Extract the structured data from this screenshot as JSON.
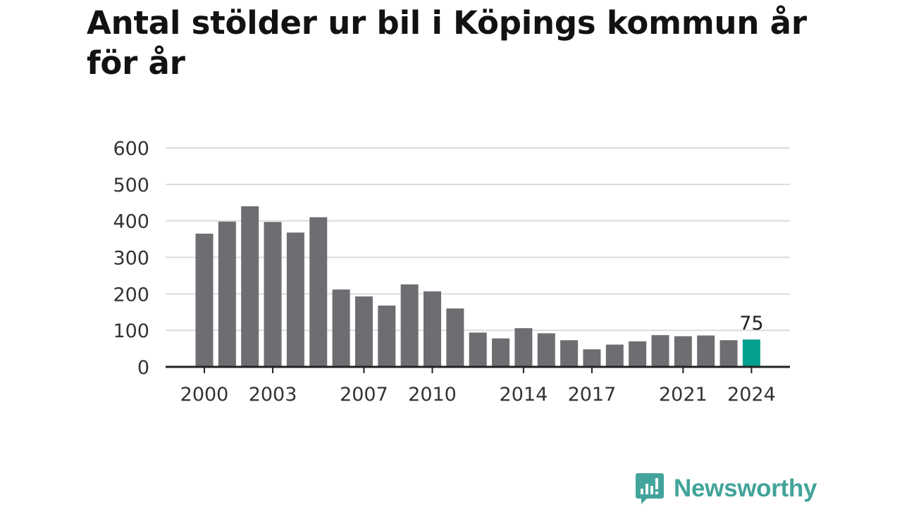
{
  "title": "Antal stölder ur bil i Köpings kommun år för år",
  "logo_text": "Newsworthy",
  "colors": {
    "bar": "#6e6d72",
    "highlight": "#05a08f",
    "grid": "#dcdcdc",
    "axis": "#222222",
    "logo": "#42a49a"
  },
  "chart_data": {
    "type": "bar",
    "title": "Antal stölder ur bil i Köpings kommun år för år",
    "xlabel": "",
    "ylabel": "",
    "categories": [
      2000,
      2001,
      2002,
      2003,
      2004,
      2005,
      2006,
      2007,
      2008,
      2009,
      2010,
      2011,
      2012,
      2013,
      2014,
      2015,
      2016,
      2017,
      2018,
      2019,
      2020,
      2021,
      2022,
      2023,
      2024
    ],
    "values": [
      365,
      398,
      440,
      397,
      368,
      410,
      212,
      193,
      168,
      226,
      207,
      160,
      94,
      78,
      106,
      92,
      73,
      48,
      61,
      70,
      87,
      84,
      86,
      73,
      75
    ],
    "x_tick_labels": [
      "2000",
      "2003",
      "2007",
      "2010",
      "2014",
      "2017",
      "2021",
      "2024"
    ],
    "y_ticks": [
      "0",
      "100",
      "200",
      "300",
      "400",
      "500",
      "600"
    ],
    "ylim": [
      0,
      600
    ],
    "grid": true,
    "highlight_category": 2024,
    "highlight_label": "75"
  }
}
